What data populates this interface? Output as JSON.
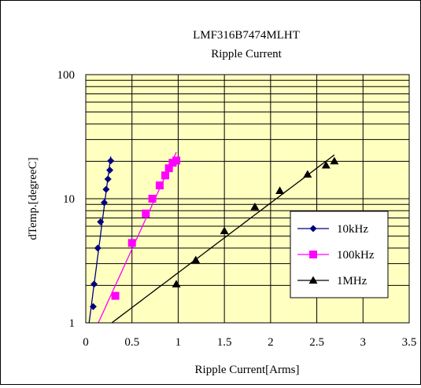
{
  "chart_data": {
    "type": "scatter",
    "title": "LMF316B7474MLHT",
    "subtitle": "Ripple Current",
    "xlabel": "Ripple Current[Arms]",
    "ylabel": "dTemp.[degreeC]",
    "xlim": [
      0,
      3.5
    ],
    "ylim": [
      1,
      100
    ],
    "yscale": "log",
    "x_ticks": [
      "0",
      "0.5",
      "1",
      "1.5",
      "2",
      "2.5",
      "3",
      "3.5"
    ],
    "y_ticks": [
      "1",
      "10",
      "100"
    ],
    "grid": true,
    "legend_position": "right",
    "plot_background": "#ffffc0",
    "series": [
      {
        "name": "10kHz",
        "color": "#000080",
        "marker": "diamond",
        "x": [
          0.08,
          0.09,
          0.13,
          0.16,
          0.2,
          0.22,
          0.24,
          0.26,
          0.27
        ],
        "y": [
          1.35,
          2.05,
          4.0,
          6.5,
          9.3,
          11.9,
          14.4,
          17.0,
          20.2
        ]
      },
      {
        "name": "100kHz",
        "color": "#ff00ff",
        "marker": "square",
        "x": [
          0.32,
          0.5,
          0.65,
          0.72,
          0.8,
          0.86,
          0.9,
          0.94,
          0.98
        ],
        "y": [
          1.65,
          4.4,
          7.6,
          10.0,
          12.8,
          15.4,
          17.6,
          19.5,
          20.3
        ]
      },
      {
        "name": "1MHz",
        "color": "#000000",
        "marker": "triangle",
        "x": [
          0.98,
          1.19,
          1.5,
          1.83,
          2.1,
          2.4,
          2.6,
          2.69
        ],
        "y": [
          2.05,
          3.2,
          5.5,
          8.6,
          11.6,
          15.7,
          18.6,
          20.1
        ]
      }
    ]
  }
}
